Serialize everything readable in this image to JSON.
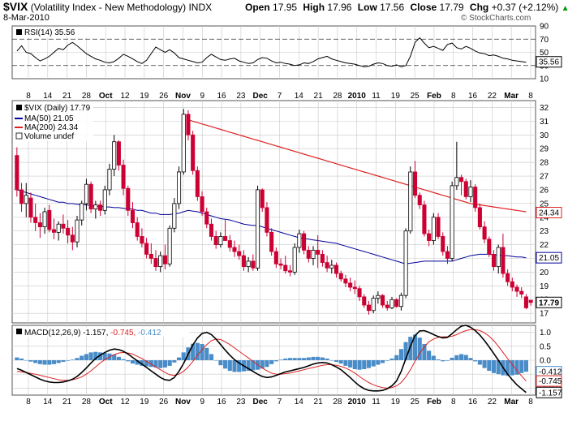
{
  "header": {
    "symbol": "$VIX",
    "name": "(Volatility Index - New Methodology)",
    "exchange": "INDX",
    "date": "8-Mar-2010",
    "credit": "© StockCharts.com",
    "quote": {
      "open_label": "Open",
      "open": "17.95",
      "high_label": "High",
      "high": "17.96",
      "low_label": "Low",
      "low": "17.56",
      "close_label": "Close",
      "close": "17.79",
      "chg_label": "Chg",
      "chg": "+0.37 (+2.12%)",
      "chg_arrow": "▲"
    }
  },
  "colors": {
    "up": "#000000",
    "down": "#cc0033",
    "ma50": "#000099",
    "ma200": "#dd2222",
    "hist": "#4a8cc8",
    "macd": "#000000",
    "signal": "#dd2222",
    "grid": "#c8c8c8"
  },
  "chart_data": [
    {
      "type": "line",
      "panel": "rsi",
      "legend": "RSI(14) 35.56",
      "ylim": [
        10,
        90
      ],
      "yticks": [
        10,
        30,
        50,
        70,
        90
      ],
      "reference_lines": [
        30,
        70
      ],
      "last": "35.56",
      "values": [
        52,
        60,
        50,
        48,
        42,
        37,
        40,
        44,
        50,
        56,
        54,
        61,
        65,
        60,
        54,
        48,
        44,
        40,
        38,
        35,
        34,
        36,
        41,
        47,
        44,
        40,
        36,
        33,
        38,
        48,
        58,
        54,
        50,
        54,
        49,
        42,
        40,
        38,
        36,
        34,
        35,
        42,
        47,
        43,
        39,
        38,
        40,
        41,
        37,
        35,
        33,
        34,
        39,
        42,
        41,
        37,
        34,
        35,
        33,
        32,
        30,
        31,
        34,
        33,
        36,
        40,
        42,
        44,
        40,
        38,
        36,
        34,
        33,
        32,
        30,
        28,
        29,
        32,
        34,
        33,
        30,
        29,
        31,
        28,
        30,
        44,
        65,
        72,
        64,
        57,
        59,
        56,
        53,
        62,
        64,
        57,
        55,
        59,
        56,
        52,
        49,
        48,
        45,
        46,
        44,
        41,
        40,
        38,
        37,
        36,
        35
      ]
    },
    {
      "type": "candlestick",
      "panel": "price",
      "legend": [
        "$VIX (Daily) 17.79",
        "MA(50) 21.05",
        "MA(200) 24.34",
        "Volume undef"
      ],
      "ylim": [
        16.3,
        32.5
      ],
      "yticks": [
        17,
        18,
        19,
        20,
        21,
        22,
        23,
        24,
        25,
        26,
        27,
        28,
        29,
        30,
        31,
        32
      ],
      "x_ticks": [
        "8",
        "14",
        "21",
        "28",
        "Oct",
        "12",
        "19",
        "26",
        "Nov",
        "9",
        "16",
        "23",
        "Dec",
        "7",
        "14",
        "21",
        "28",
        "2010",
        "11",
        "19",
        "25",
        "Feb",
        "8",
        "16",
        "22",
        "Mar",
        "8"
      ],
      "ohlc": [
        [
          28.5,
          29.1,
          25.5,
          26.0
        ],
        [
          26.0,
          26.5,
          24.4,
          25.0
        ],
        [
          25.0,
          26.5,
          24.0,
          25.6
        ],
        [
          25.4,
          25.8,
          23.6,
          24.0
        ],
        [
          24.0,
          25.0,
          23.0,
          23.6
        ],
        [
          23.6,
          24.3,
          22.5,
          23.3
        ],
        [
          23.3,
          24.7,
          22.8,
          24.4
        ],
        [
          24.5,
          24.9,
          22.9,
          23.1
        ],
        [
          23.1,
          23.9,
          22.4,
          22.9
        ],
        [
          22.9,
          23.7,
          22.3,
          23.5
        ],
        [
          23.5,
          24.2,
          22.8,
          23.2
        ],
        [
          23.2,
          23.8,
          22.1,
          22.7
        ],
        [
          22.7,
          23.3,
          21.6,
          22.2
        ],
        [
          22.2,
          24.1,
          21.8,
          23.8
        ],
        [
          23.8,
          25.2,
          23.4,
          25.0
        ],
        [
          25.0,
          26.8,
          24.5,
          26.4
        ],
        [
          26.4,
          26.6,
          24.3,
          24.6
        ],
        [
          24.6,
          25.2,
          23.9,
          24.9
        ],
        [
          24.9,
          25.2,
          24.1,
          24.5
        ],
        [
          24.5,
          26.3,
          24.2,
          26.0
        ],
        [
          26.0,
          27.9,
          25.6,
          27.5
        ],
        [
          27.5,
          30.0,
          27.0,
          29.5
        ],
        [
          29.5,
          29.6,
          27.4,
          27.8
        ],
        [
          27.8,
          28.2,
          25.6,
          26.1
        ],
        [
          26.1,
          26.3,
          24.1,
          24.5
        ],
        [
          24.5,
          25.1,
          23.2,
          23.6
        ],
        [
          23.6,
          24.0,
          22.3,
          22.6
        ],
        [
          22.6,
          23.2,
          21.8,
          22.1
        ],
        [
          22.1,
          22.5,
          21.0,
          21.3
        ],
        [
          21.3,
          22.1,
          20.6,
          21.0
        ],
        [
          21.0,
          21.6,
          20.1,
          20.4
        ],
        [
          20.4,
          21.5,
          20.0,
          21.2
        ],
        [
          21.2,
          22.0,
          20.2,
          20.6
        ],
        [
          20.6,
          23.4,
          20.4,
          23.2
        ],
        [
          23.2,
          25.4,
          22.9,
          25.0
        ],
        [
          25.0,
          27.7,
          24.6,
          27.3
        ],
        [
          27.3,
          31.9,
          27.1,
          31.5
        ],
        [
          31.5,
          31.8,
          29.6,
          30.0
        ],
        [
          30.0,
          30.3,
          27.1,
          27.4
        ],
        [
          27.4,
          27.7,
          25.2,
          25.5
        ],
        [
          25.5,
          25.9,
          24.1,
          24.4
        ],
        [
          24.4,
          24.7,
          23.2,
          23.5
        ],
        [
          23.5,
          23.9,
          22.3,
          22.6
        ],
        [
          22.6,
          23.0,
          21.7,
          22.0
        ],
        [
          22.0,
          22.9,
          21.8,
          22.6
        ],
        [
          22.6,
          23.8,
          22.3,
          22.3
        ],
        [
          22.3,
          22.7,
          21.5,
          21.8
        ],
        [
          21.8,
          22.3,
          21.1,
          21.5
        ],
        [
          21.5,
          22.0,
          20.9,
          21.2
        ],
        [
          21.2,
          21.6,
          20.1,
          20.4
        ],
        [
          20.4,
          21.1,
          20.0,
          20.8
        ],
        [
          20.8,
          21.3,
          20.1,
          20.3
        ],
        [
          20.3,
          26.3,
          20.1,
          26.0
        ],
        [
          26.0,
          26.1,
          24.4,
          24.7
        ],
        [
          24.7,
          25.1,
          22.6,
          22.9
        ],
        [
          22.9,
          23.2,
          21.2,
          21.5
        ],
        [
          21.5,
          21.8,
          20.3,
          20.6
        ],
        [
          20.6,
          21.0,
          20.2,
          20.5
        ],
        [
          20.5,
          21.2,
          19.9,
          20.1
        ],
        [
          20.1,
          20.5,
          19.7,
          20.0
        ],
        [
          20.0,
          22.1,
          19.8,
          21.8
        ],
        [
          21.8,
          23.1,
          21.4,
          22.8
        ],
        [
          22.8,
          23.0,
          21.3,
          21.6
        ],
        [
          21.6,
          21.9,
          20.7,
          21.0
        ],
        [
          21.0,
          21.9,
          20.5,
          21.6
        ],
        [
          21.6,
          22.7,
          20.3,
          21.3
        ],
        [
          21.3,
          21.6,
          20.4,
          20.7
        ],
        [
          20.7,
          21.2,
          20.0,
          20.3
        ],
        [
          20.3,
          20.9,
          19.9,
          20.5
        ],
        [
          20.5,
          20.7,
          19.6,
          19.9
        ],
        [
          19.9,
          20.1,
          19.3,
          19.5
        ],
        [
          19.5,
          19.8,
          18.9,
          19.2
        ],
        [
          19.2,
          19.6,
          18.6,
          18.9
        ],
        [
          18.9,
          19.4,
          18.4,
          18.8
        ],
        [
          18.8,
          19.0,
          17.9,
          18.2
        ],
        [
          18.2,
          18.4,
          17.4,
          17.6
        ],
        [
          17.6,
          17.9,
          16.9,
          17.2
        ],
        [
          17.2,
          18.3,
          17.0,
          18.1
        ],
        [
          18.1,
          18.6,
          17.7,
          18.3
        ],
        [
          18.3,
          18.4,
          17.4,
          17.6
        ],
        [
          17.6,
          17.9,
          17.2,
          17.4
        ],
        [
          17.4,
          18.2,
          17.3,
          18.0
        ],
        [
          18.0,
          18.1,
          17.4,
          17.5
        ],
        [
          17.5,
          18.5,
          17.2,
          18.3
        ],
        [
          18.3,
          23.2,
          18.1,
          23.0
        ],
        [
          23.0,
          27.7,
          22.8,
          27.3
        ],
        [
          27.3,
          28.1,
          25.4,
          25.6
        ],
        [
          25.6,
          25.8,
          24.6,
          24.9
        ],
        [
          24.9,
          25.2,
          22.6,
          22.8
        ],
        [
          22.8,
          23.1,
          21.9,
          22.3
        ],
        [
          22.3,
          24.3,
          22.0,
          24.0
        ],
        [
          24.0,
          24.3,
          22.4,
          22.6
        ],
        [
          22.6,
          22.9,
          21.2,
          21.5
        ],
        [
          21.5,
          21.9,
          20.6,
          21.0
        ],
        [
          21.0,
          26.6,
          20.8,
          26.3
        ],
        [
          26.3,
          29.5,
          26.0,
          26.9
        ],
        [
          26.9,
          27.1,
          25.6,
          26.6
        ],
        [
          26.6,
          26.8,
          25.3,
          25.5
        ],
        [
          25.5,
          26.7,
          25.1,
          26.2
        ],
        [
          26.2,
          26.4,
          24.4,
          24.7
        ],
        [
          24.7,
          25.0,
          23.1,
          23.3
        ],
        [
          23.3,
          23.7,
          22.1,
          22.4
        ],
        [
          22.4,
          22.6,
          21.1,
          21.3
        ],
        [
          21.3,
          21.6,
          20.1,
          20.4
        ],
        [
          20.4,
          22.0,
          19.9,
          21.8
        ],
        [
          21.8,
          22.8,
          19.6,
          19.9
        ],
        [
          19.9,
          20.2,
          19.0,
          19.3
        ],
        [
          19.3,
          19.6,
          18.6,
          18.9
        ],
        [
          18.9,
          19.1,
          18.2,
          18.6
        ],
        [
          18.6,
          18.9,
          18.1,
          18.4
        ],
        [
          18.2,
          18.4,
          17.3,
          17.4
        ],
        [
          17.95,
          17.96,
          17.56,
          17.79
        ]
      ],
      "ma50": [
        26.0,
        25.9,
        25.8,
        25.7,
        25.6,
        25.5,
        25.4,
        25.3,
        25.2,
        25.1,
        25.1,
        25.0,
        25.0,
        24.95,
        24.9,
        24.9,
        24.85,
        24.8,
        24.8,
        24.75,
        24.75,
        24.7,
        24.7,
        24.65,
        24.6,
        24.6,
        24.5,
        24.5,
        24.4,
        24.3,
        24.3,
        24.2,
        24.2,
        24.2,
        24.25,
        24.3,
        24.4,
        24.5,
        24.45,
        24.4,
        24.3,
        24.2,
        24.1,
        24.0,
        23.9,
        23.85,
        23.8,
        23.7,
        23.6,
        23.5,
        23.45,
        23.4,
        23.4,
        23.3,
        23.2,
        23.1,
        23.0,
        22.9,
        22.8,
        22.7,
        22.6,
        22.5,
        22.45,
        22.4,
        22.35,
        22.3,
        22.25,
        22.2,
        22.15,
        22.1,
        22.0,
        21.9,
        21.8,
        21.7,
        21.6,
        21.5,
        21.4,
        21.3,
        21.2,
        21.1,
        21.0,
        20.9,
        20.8,
        20.7,
        20.6,
        20.65,
        20.7,
        20.75,
        20.8,
        20.8,
        20.8,
        20.8,
        20.8,
        20.8,
        20.8,
        20.9,
        21.0,
        21.1,
        21.2,
        21.25,
        21.3,
        21.3,
        21.3,
        21.25,
        21.25,
        21.2,
        21.2,
        21.15,
        21.1,
        21.1,
        21.05
      ],
      "ma200_start_index": 37,
      "ma200": [
        31.1,
        31.0,
        30.9,
        30.8,
        30.7,
        30.6,
        30.5,
        30.4,
        30.3,
        30.2,
        30.1,
        30.0,
        29.9,
        29.8,
        29.7,
        29.6,
        29.5,
        29.4,
        29.3,
        29.2,
        29.1,
        29.0,
        28.9,
        28.8,
        28.7,
        28.6,
        28.5,
        28.4,
        28.3,
        28.2,
        28.1,
        28.0,
        27.9,
        27.8,
        27.7,
        27.6,
        27.5,
        27.4,
        27.3,
        27.2,
        27.1,
        27.0,
        26.9,
        26.8,
        26.7,
        26.6,
        26.5,
        26.4,
        26.3,
        26.2,
        26.1,
        26.0,
        25.9,
        25.8,
        25.7,
        25.6,
        25.5,
        25.4,
        25.3,
        25.2,
        25.1,
        25.0,
        24.95,
        24.9,
        24.85,
        24.8,
        24.75,
        24.7,
        24.65,
        24.6,
        24.55,
        24.5,
        24.45,
        24.4
      ],
      "last_labels": {
        "ma200": "24.34",
        "ma50": "21.05",
        "close": "17.79"
      }
    },
    {
      "type": "line",
      "panel": "macd",
      "legend": {
        "main": "MACD(12,26,9)",
        "macd": "-1.157",
        "signal": "-0.745",
        "hist": "-0.412"
      },
      "ylim": [
        -1.25,
        1.25
      ],
      "yticks": [
        -1.0,
        -0.5,
        0.0,
        0.5,
        1.0
      ],
      "last_labels": {
        "hist": "-0.412",
        "signal": "-0.745",
        "macd": "-1.157"
      },
      "macd": [
        -0.3,
        -0.36,
        -0.44,
        -0.52,
        -0.6,
        -0.68,
        -0.74,
        -0.78,
        -0.8,
        -0.8,
        -0.78,
        -0.74,
        -0.68,
        -0.58,
        -0.44,
        -0.28,
        -0.1,
        0.06,
        0.18,
        0.28,
        0.36,
        0.4,
        0.38,
        0.32,
        0.22,
        0.1,
        -0.02,
        -0.14,
        -0.26,
        -0.38,
        -0.5,
        -0.62,
        -0.7,
        -0.72,
        -0.62,
        -0.4,
        -0.12,
        0.22,
        0.55,
        0.8,
        0.96,
        1.0,
        0.92,
        0.76,
        0.56,
        0.36,
        0.18,
        0.02,
        -0.1,
        -0.2,
        -0.3,
        -0.4,
        -0.5,
        -0.58,
        -0.62,
        -0.6,
        -0.54,
        -0.48,
        -0.42,
        -0.38,
        -0.34,
        -0.3,
        -0.26,
        -0.2,
        -0.14,
        -0.1,
        -0.08,
        -0.1,
        -0.16,
        -0.24,
        -0.34,
        -0.48,
        -0.62,
        -0.78,
        -0.92,
        -1.02,
        -1.08,
        -1.1,
        -1.1,
        -1.08,
        -1.02,
        -0.92,
        -0.74,
        -0.4,
        0.05,
        0.5,
        0.88,
        1.05,
        1.06,
        1.0,
        0.92,
        0.85,
        0.8,
        0.82,
        0.95,
        1.1,
        1.22,
        1.25,
        1.18,
        1.06,
        0.9,
        0.7,
        0.48,
        0.24,
        0.0,
        -0.26,
        -0.5,
        -0.7,
        -0.88,
        -1.02,
        -1.157
      ],
      "signal": [
        -0.4,
        -0.42,
        -0.44,
        -0.47,
        -0.5,
        -0.54,
        -0.58,
        -0.62,
        -0.66,
        -0.7,
        -0.72,
        -0.72,
        -0.7,
        -0.66,
        -0.6,
        -0.5,
        -0.38,
        -0.24,
        -0.1,
        0.02,
        0.12,
        0.2,
        0.26,
        0.28,
        0.26,
        0.22,
        0.14,
        0.06,
        -0.04,
        -0.14,
        -0.24,
        -0.34,
        -0.44,
        -0.52,
        -0.54,
        -0.5,
        -0.4,
        -0.24,
        -0.04,
        0.18,
        0.38,
        0.56,
        0.7,
        0.76,
        0.74,
        0.66,
        0.56,
        0.44,
        0.32,
        0.2,
        0.08,
        -0.04,
        -0.16,
        -0.28,
        -0.38,
        -0.46,
        -0.5,
        -0.5,
        -0.48,
        -0.46,
        -0.42,
        -0.38,
        -0.34,
        -0.3,
        -0.26,
        -0.22,
        -0.18,
        -0.16,
        -0.16,
        -0.18,
        -0.22,
        -0.28,
        -0.36,
        -0.46,
        -0.58,
        -0.7,
        -0.8,
        -0.88,
        -0.94,
        -0.98,
        -1.0,
        -0.98,
        -0.92,
        -0.8,
        -0.6,
        -0.34,
        -0.04,
        0.24,
        0.48,
        0.66,
        0.76,
        0.82,
        0.84,
        0.84,
        0.86,
        0.92,
        1.0,
        1.06,
        1.1,
        1.1,
        1.06,
        0.98,
        0.86,
        0.7,
        0.5,
        0.28,
        0.06,
        -0.16,
        -0.36,
        -0.56,
        -0.745
      ]
    }
  ]
}
